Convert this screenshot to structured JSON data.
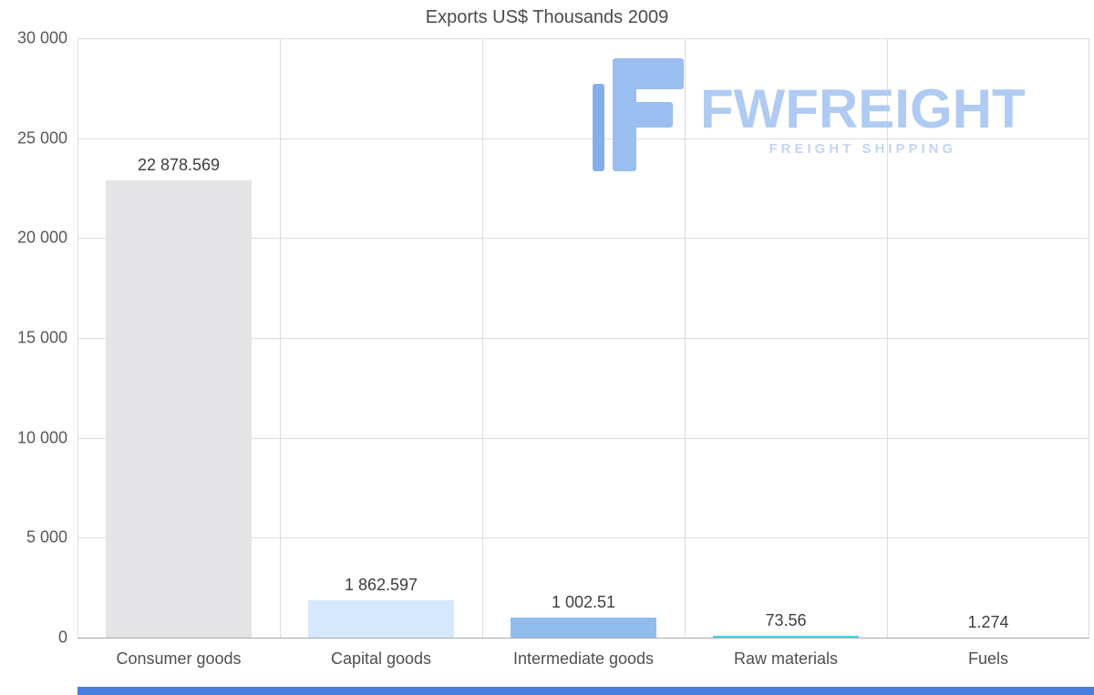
{
  "page": {
    "title": "Exports US$ Thousands 2009"
  },
  "watermark": {
    "brand": "FWFREIGHT",
    "tagline": "FREIGHT SHIPPING",
    "icon": "fwfreight-logo-icon",
    "brand_color": "#b0cbf2",
    "tagline_color": "#c2d6f5",
    "icon_color": "#9abef0",
    "icon_accent_color": "#84aeea"
  },
  "footer": {
    "strip_color": "#4b7ce1"
  },
  "chart_data": {
    "type": "bar",
    "title": "Exports US$ Thousands 2009",
    "categories": [
      "Consumer goods",
      "Capital goods",
      "Intermediate goods",
      "Raw materials",
      "Fuels"
    ],
    "values": [
      22878.569,
      1862.597,
      1002.51,
      73.56,
      1.274
    ],
    "value_labels": [
      "22 878.569",
      "1 862.597",
      "1 002.51",
      "73.56",
      "1.274"
    ],
    "bar_colors": [
      "#e4e4e6",
      "#d6e8fb",
      "#90bdee",
      "#45d5e5",
      "#45d5e5"
    ],
    "xlabel": "",
    "ylabel": "",
    "ylim": [
      0,
      30000
    ],
    "ytick_values": [
      0,
      5000,
      10000,
      15000,
      20000,
      25000,
      30000
    ],
    "ytick_labels": [
      "0",
      "5 000",
      "10 000",
      "15 000",
      "20 000",
      "25 000",
      "30 000"
    ],
    "grid": true,
    "legend": false
  }
}
